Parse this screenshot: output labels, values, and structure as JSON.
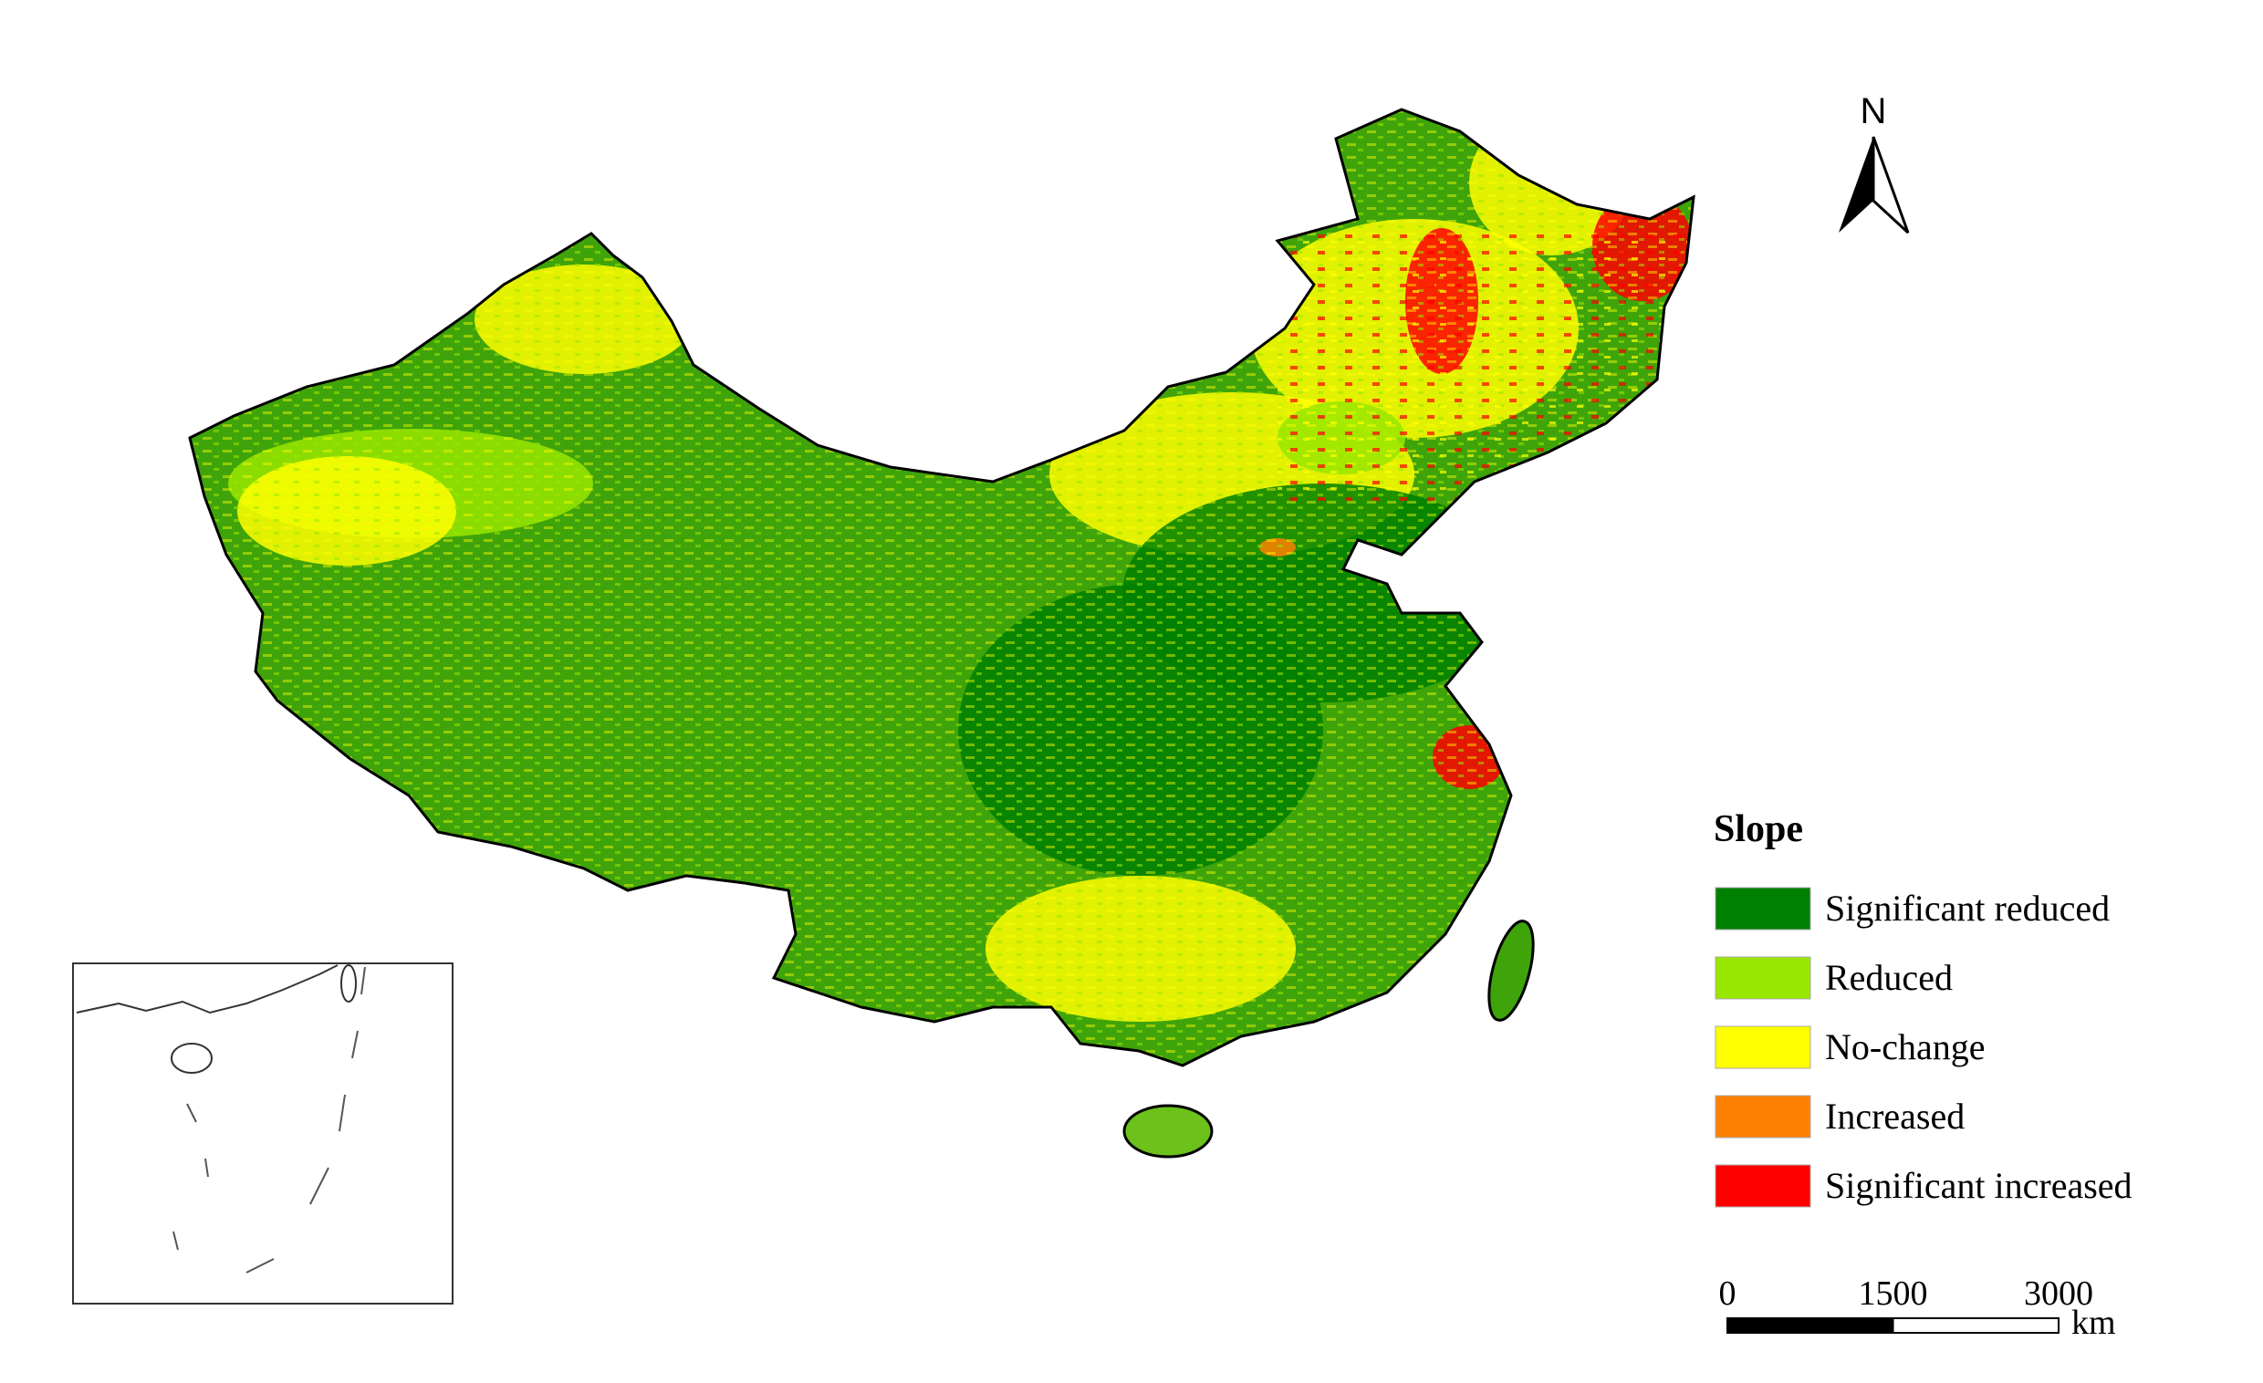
{
  "map": {
    "legend": {
      "title": "Slope",
      "items": [
        {
          "label": "Significant reduced",
          "color": "#008000"
        },
        {
          "label": "Reduced",
          "color": "#99e600"
        },
        {
          "label": "No-change",
          "color": "#ffff00"
        },
        {
          "label": "Increased",
          "color": "#ff8000"
        },
        {
          "label": "Significant increased",
          "color": "#ff0000"
        }
      ]
    },
    "north_arrow": {
      "label": "N"
    },
    "scale_bar": {
      "ticks": [
        0,
        1500,
        3000
      ],
      "unit": "km"
    }
  }
}
